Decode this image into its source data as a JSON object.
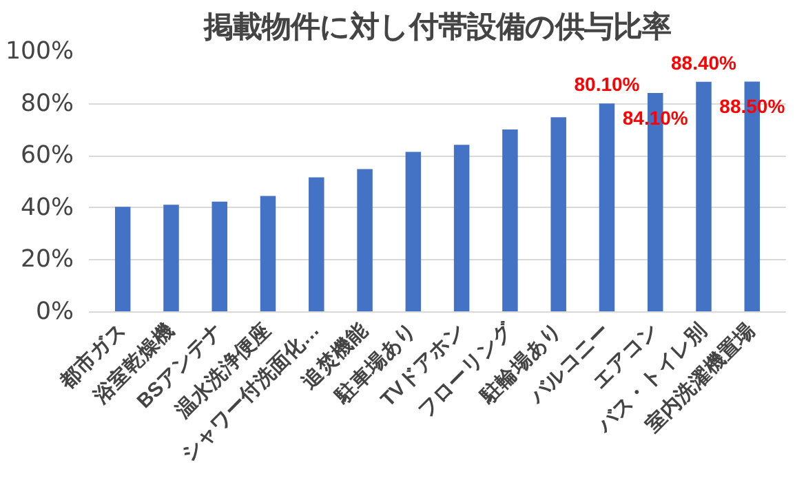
{
  "chart_data": {
    "type": "bar",
    "title": "掲載物件に対し付帯設備の供与比率",
    "categories": [
      "都市ガス",
      "浴室乾燥機",
      "BSアンテナ",
      "温水洗浄便座",
      "シャワー付洗面化…",
      "追焚機能",
      "駐車場あり",
      "TVドアホン",
      "フローリング",
      "駐輪場あり",
      "バルコニー",
      "エアコン",
      "バス・トイレ別",
      "室内洗濯機置場"
    ],
    "values": [
      40.4,
      41.2,
      42.4,
      44.6,
      51.7,
      54.9,
      61.5,
      64.2,
      70.1,
      74.8,
      80.1,
      84.1,
      88.4,
      88.5
    ],
    "value_labels": [
      null,
      null,
      null,
      null,
      null,
      null,
      null,
      null,
      null,
      null,
      "80.10%",
      "84.10%",
      "88.40%",
      "88.50%"
    ],
    "color": "#4472c4",
    "ylim": [
      0,
      100
    ],
    "yticks": [
      {
        "value": 0,
        "label": "0%"
      },
      {
        "value": 20,
        "label": "20%"
      },
      {
        "value": 40,
        "label": "40%"
      },
      {
        "value": 60,
        "label": "60%"
      },
      {
        "value": 80,
        "label": "80%"
      },
      {
        "value": 100,
        "label": "100%"
      }
    ],
    "grid": "y"
  }
}
